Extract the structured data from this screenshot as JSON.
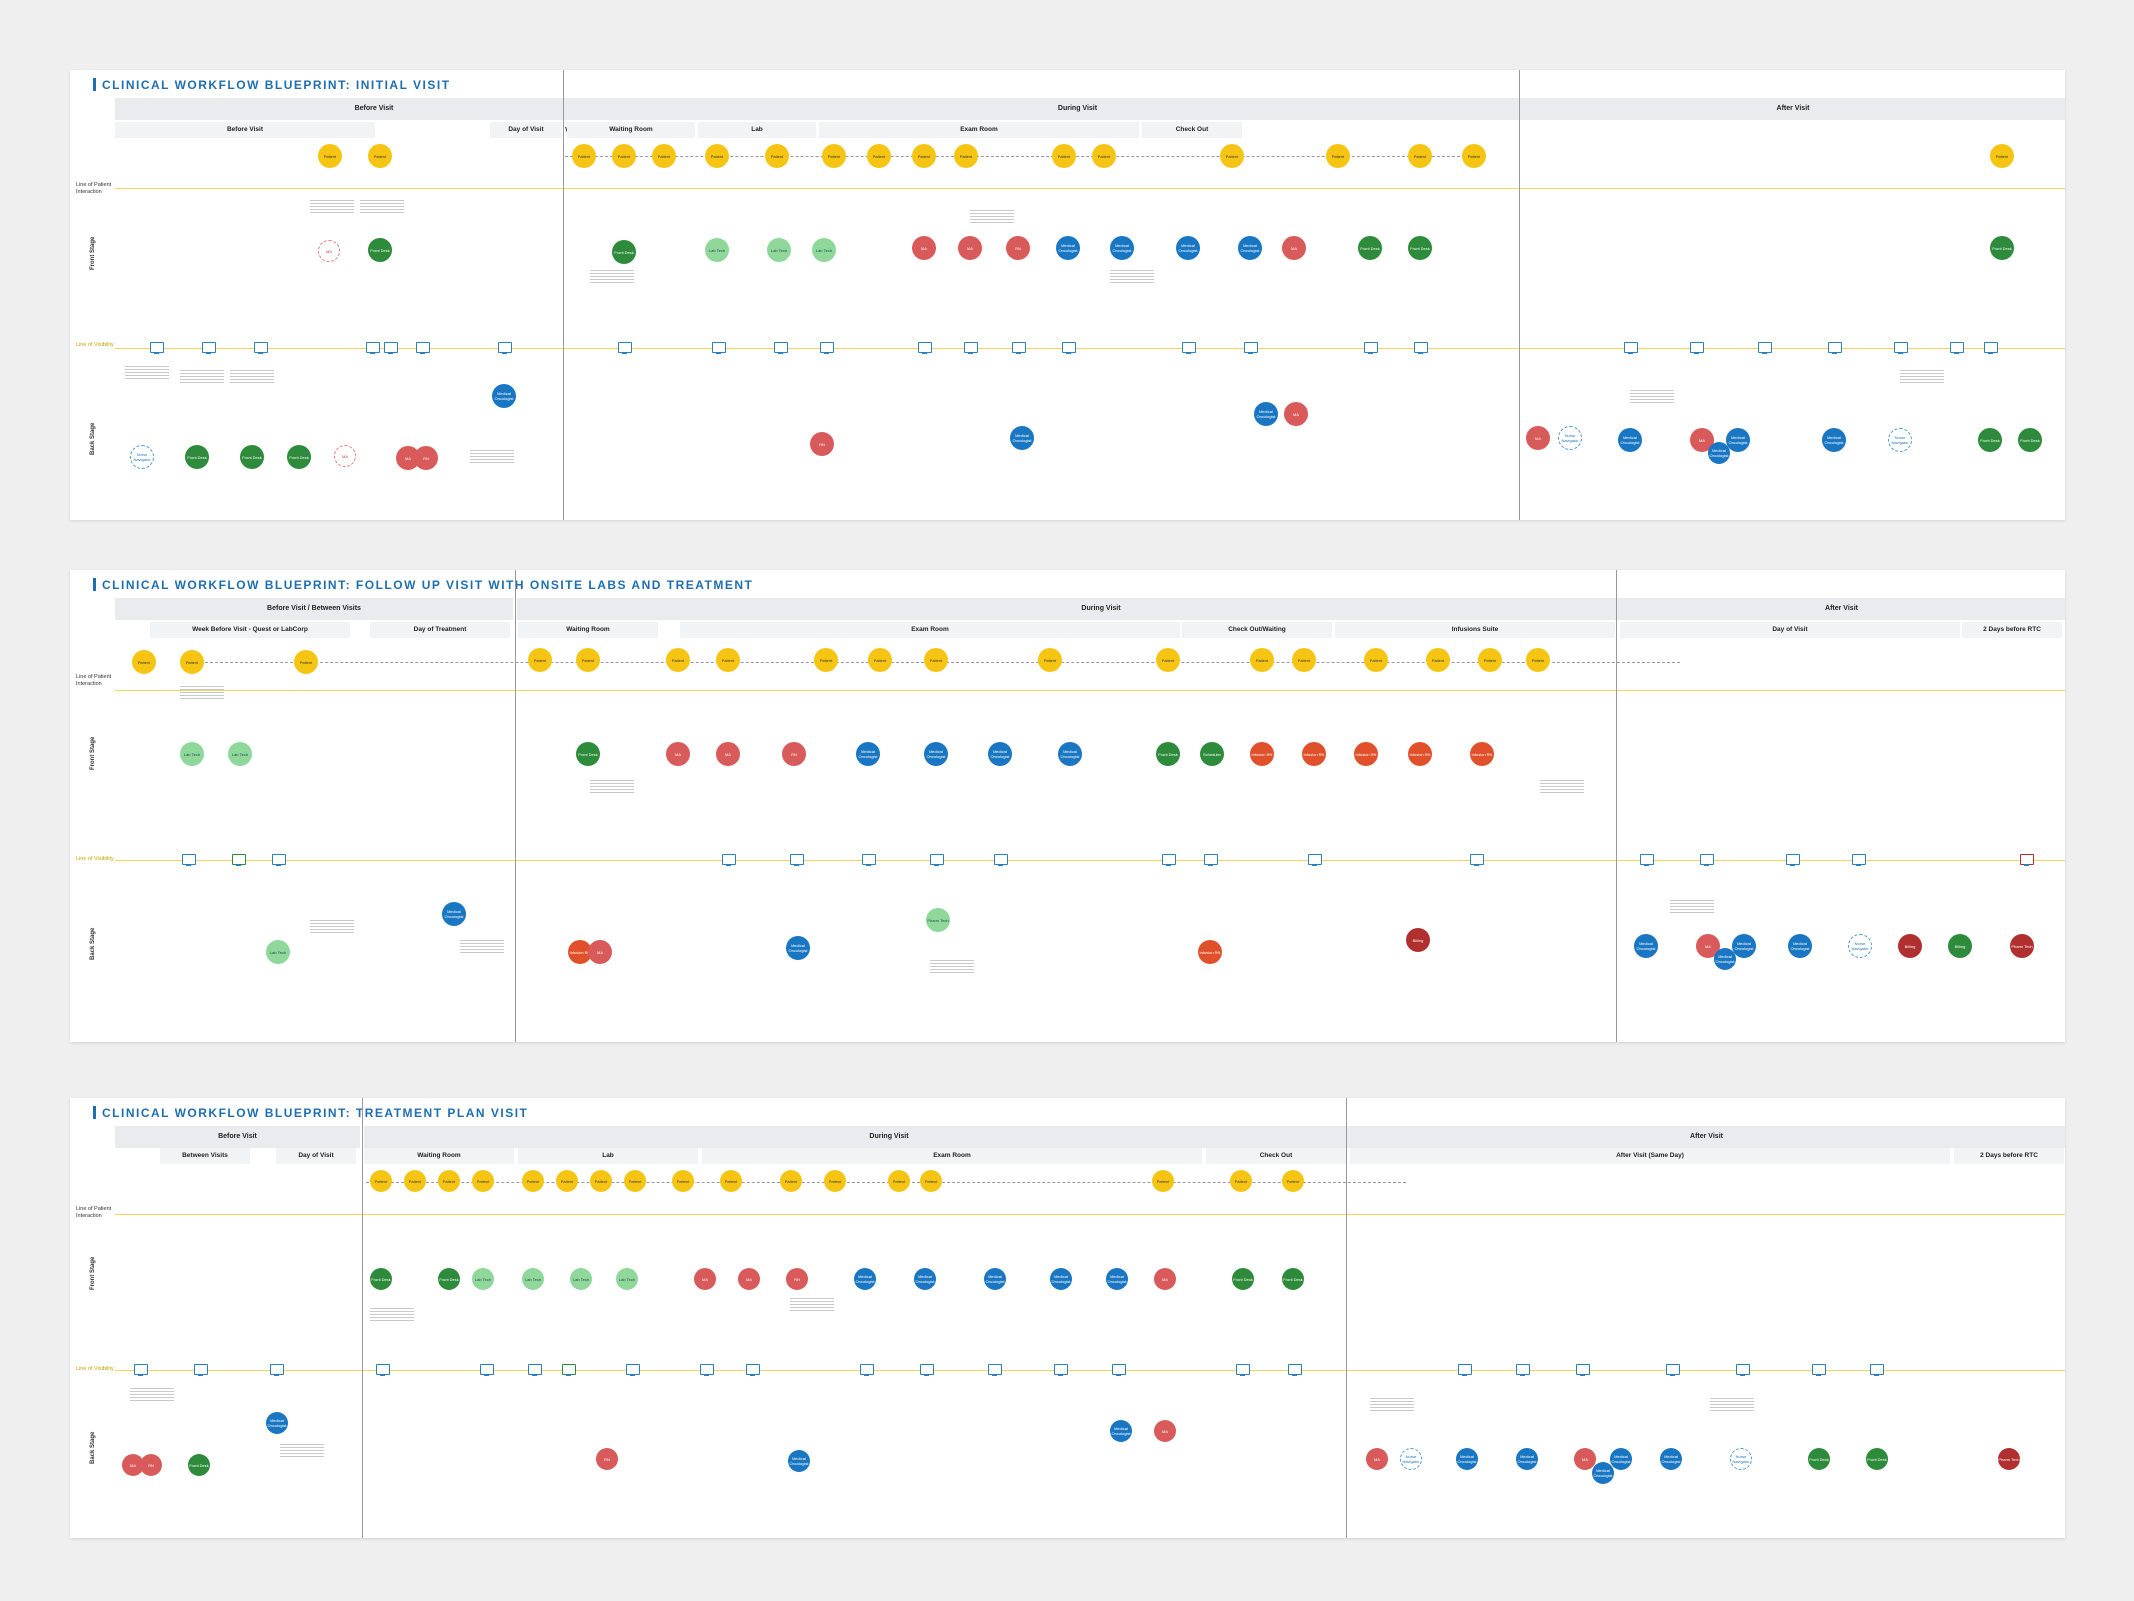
{
  "panels": [
    {
      "title": "CLINICAL WORKFLOW BLUEPRINT: INITIAL VISIT",
      "phases": [
        "Before Visit",
        "During Visit",
        "After Visit"
      ],
      "subphases": [
        "Before Visit",
        "Day of Visit",
        "Waiting Room",
        "Lab",
        "Exam Room",
        "Check Out"
      ],
      "lanes": [
        "Line of Patient Interaction",
        "Front Stage",
        "Line of Visibility",
        "Back Stage"
      ]
    },
    {
      "title": "CLINICAL WORKFLOW BLUEPRINT: FOLLOW UP VISIT WITH ONSITE LABS AND TREATMENT",
      "phases": [
        "Before Visit / Between Visits",
        "During Visit",
        "After Visit"
      ],
      "subphases": [
        "Week Before Visit - Quest or LabCorp",
        "Day of Treatment",
        "Waiting Room",
        "Exam Room",
        "Check Out/Waiting",
        "Infusions Suite",
        "Day of Visit",
        "2 Days before RTC"
      ],
      "lanes": [
        "Line of Patient Interaction",
        "Front Stage",
        "Line of Visibility",
        "Back Stage"
      ]
    },
    {
      "title": "CLINICAL WORKFLOW BLUEPRINT: TREATMENT PLAN VISIT",
      "phases": [
        "Before Visit",
        "During Visit",
        "After Visit"
      ],
      "subphases": [
        "Between Visits",
        "Day of Visit",
        "Waiting Room",
        "Lab",
        "Exam Room",
        "Check Out",
        "After Visit (Same Day)",
        "2 Days before RTC"
      ],
      "lanes": [
        "Line of Patient Interaction",
        "Front Stage",
        "Line of Visibility",
        "Back Stage"
      ]
    }
  ],
  "labels": {
    "patient": "Patient",
    "front_desk": "Front Desk",
    "lab_tech": "Lab Tech",
    "ma": "MA",
    "rn": "RN",
    "medical_oncologist": "Medical Oncologist",
    "infusion_rn": "Infusion RN",
    "scheduler": "Scheduler",
    "billing": "Billing",
    "pharm_tech": "Pharm Tech",
    "nurse_navigator": "Nurse Navigator"
  },
  "colors": {
    "patient": "#f6c514",
    "front_desk": "#2e8b3b",
    "lab": "#8fd89a",
    "clinical": "#d95a5a",
    "oncologist": "#1976c2",
    "infusion": "#e0502a",
    "accent": "#1f6fb0"
  }
}
